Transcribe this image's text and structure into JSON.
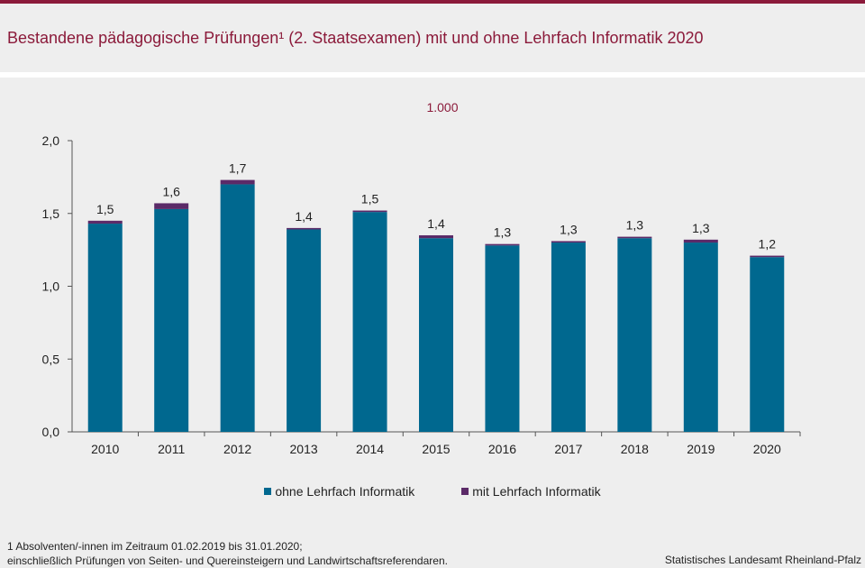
{
  "header": {
    "title": "Bestandene pädagogische Prüfungen¹ (2. Staatsexamen) mit und ohne Lehrfach Informatik 2020"
  },
  "colors": {
    "brand": "#8b1a3a",
    "series_ohne": "#00688f",
    "series_mit": "#5b2a68",
    "background": "#eeeeee"
  },
  "chart_data": {
    "type": "bar",
    "stacked": true,
    "unit_label": "1.000",
    "categories": [
      "2010",
      "2011",
      "2012",
      "2013",
      "2014",
      "2015",
      "2016",
      "2017",
      "2018",
      "2019",
      "2020"
    ],
    "series": [
      {
        "name": "ohne Lehrfach Informatik",
        "values": [
          1.43,
          1.53,
          1.7,
          1.39,
          1.51,
          1.33,
          1.28,
          1.3,
          1.33,
          1.3,
          1.2
        ]
      },
      {
        "name": "mit Lehrfach Informatik",
        "values": [
          0.02,
          0.04,
          0.03,
          0.01,
          0.01,
          0.02,
          0.01,
          0.01,
          0.01,
          0.02,
          0.01
        ]
      }
    ],
    "total_labels": [
      "1,5",
      "1,6",
      "1,7",
      "1,4",
      "1,5",
      "1,4",
      "1,3",
      "1,3",
      "1,3",
      "1,3",
      "1,2"
    ],
    "ylim": [
      0,
      2
    ],
    "yticks": [
      0,
      0.5,
      1,
      1.5,
      2
    ],
    "ytick_labels": [
      "0,0",
      "0,5",
      "1,0",
      "1,5",
      "2,0"
    ],
    "grid": false,
    "legend_position": "bottom"
  },
  "legend": {
    "ohne": "ohne Lehrfach Informatik",
    "mit": "mit Lehrfach Informatik"
  },
  "footnote": {
    "line1": "1 Absolventen/-innen  im Zeitraum  01.02.2019  bis  31.01.2020;",
    "line2": "einschließlich  Prüfungen  von  Seiten-  und  Quereinsteigern  und  Landwirtschaftsreferendaren."
  },
  "source": "Statistisches Landesamt Rheinland-Pfalz"
}
